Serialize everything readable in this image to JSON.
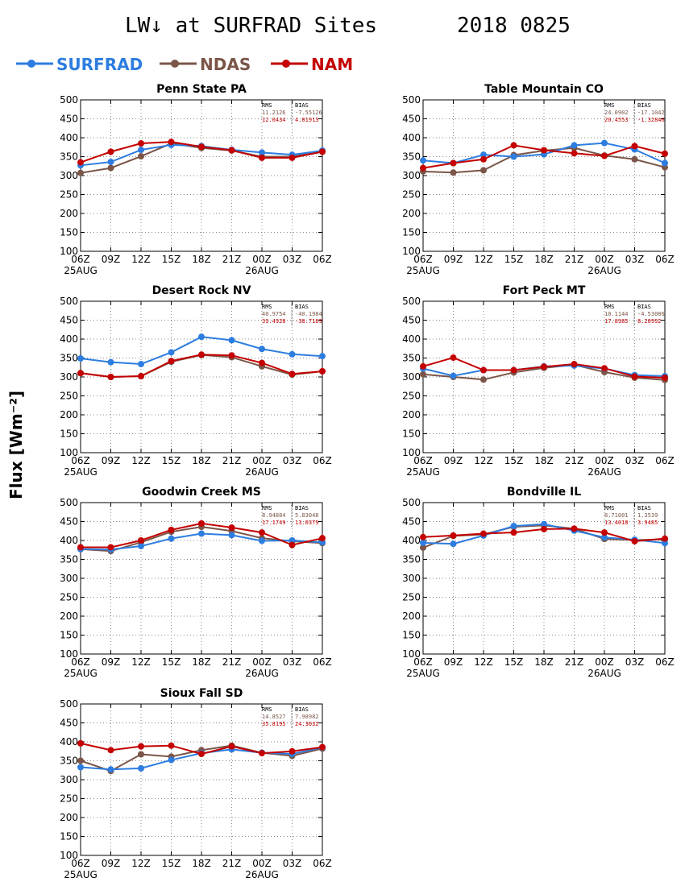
{
  "title_left": "LW↓ at SURFRAD Sites",
  "title_right": "2018 0825",
  "ylabel": "Flux [Wm⁻²]",
  "colors": {
    "SURFRAD": "#2d7de0",
    "NDAS": "#7a5548",
    "NAM": "#c40000"
  },
  "legend": [
    {
      "name": "SURFRAD",
      "color": "#2d7de0"
    },
    {
      "name": "NDAS",
      "color": "#7a5548"
    },
    {
      "name": "NAM",
      "color": "#c40000"
    }
  ],
  "chart_data": [
    {
      "type": "line",
      "title": "Penn State PA",
      "x": [
        "06Z",
        "09Z",
        "12Z",
        "15Z",
        "18Z",
        "21Z",
        "00Z",
        "03Z",
        "06Z"
      ],
      "date_labels": [
        "25AUG",
        "26AUG"
      ],
      "ylim": [
        100,
        500
      ],
      "yticks": [
        100,
        150,
        200,
        250,
        300,
        350,
        400,
        450,
        500
      ],
      "series": [
        {
          "name": "SURFRAD",
          "values": [
            327,
            336,
            368,
            381,
            378,
            368,
            361,
            355,
            366
          ]
        },
        {
          "name": "NDAS",
          "values": [
            307,
            320,
            351,
            385,
            373,
            366,
            350,
            350,
            365
          ]
        },
        {
          "name": "NAM",
          "values": [
            335,
            363,
            385,
            389,
            376,
            367,
            347,
            347,
            363
          ]
        }
      ],
      "stats": {
        "header": [
          "RMS",
          "BIAS"
        ],
        "NDAS": [
          "11.2126",
          "-7.55126"
        ],
        "NAM": [
          "12.0434",
          "4.81913"
        ]
      }
    },
    {
      "type": "line",
      "title": "Table Mountain CO",
      "x": [
        "06Z",
        "09Z",
        "12Z",
        "15Z",
        "18Z",
        "21Z",
        "00Z",
        "03Z",
        "06Z"
      ],
      "date_labels": [
        "25AUG",
        "26AUG"
      ],
      "ylim": [
        100,
        500
      ],
      "yticks": [
        100,
        150,
        200,
        250,
        300,
        350,
        400,
        450,
        500
      ],
      "series": [
        {
          "name": "SURFRAD",
          "values": [
            340,
            333,
            355,
            350,
            356,
            380,
            386,
            369,
            333
          ]
        },
        {
          "name": "NDAS",
          "values": [
            311,
            308,
            314,
            354,
            366,
            373,
            353,
            343,
            322
          ]
        },
        {
          "name": "NAM",
          "values": [
            320,
            333,
            343,
            380,
            367,
            359,
            352,
            378,
            358
          ]
        }
      ],
      "stats": {
        "header": [
          "RMS",
          "BIAS"
        ],
        "NDAS": [
          "24.0902",
          "-17.1042"
        ],
        "NAM": [
          "20.4553",
          "-1.32846"
        ]
      }
    },
    {
      "type": "line",
      "title": "Desert Rock NV",
      "x": [
        "06Z",
        "09Z",
        "12Z",
        "15Z",
        "18Z",
        "21Z",
        "00Z",
        "03Z",
        "06Z"
      ],
      "date_labels": [
        "25AUG",
        "26AUG"
      ],
      "ylim": [
        100,
        500
      ],
      "yticks": [
        100,
        150,
        200,
        250,
        300,
        350,
        400,
        450,
        500
      ],
      "series": [
        {
          "name": "SURFRAD",
          "values": [
            349,
            339,
            334,
            365,
            406,
            397,
            374,
            360,
            355
          ]
        },
        {
          "name": "NDAS",
          "values": [
            310,
            300,
            302,
            340,
            358,
            352,
            328,
            306,
            315
          ]
        },
        {
          "name": "NAM",
          "values": [
            310,
            300,
            302,
            342,
            359,
            357,
            337,
            308,
            315
          ]
        }
      ],
      "stats": {
        "header": [
          "RMS",
          "BIAS"
        ],
        "NDAS": [
          "40.9754",
          "-40.1984"
        ],
        "NAM": [
          "39.4928",
          "-38.7189"
        ]
      }
    },
    {
      "type": "line",
      "title": "Fort Peck MT",
      "x": [
        "06Z",
        "09Z",
        "12Z",
        "15Z",
        "18Z",
        "21Z",
        "00Z",
        "03Z",
        "06Z"
      ],
      "date_labels": [
        "25AUG",
        "26AUG"
      ],
      "ylim": [
        100,
        500
      ],
      "yticks": [
        100,
        150,
        200,
        250,
        300,
        350,
        400,
        450,
        500
      ],
      "series": [
        {
          "name": "SURFRAD",
          "values": [
            322,
            303,
            318,
            318,
            328,
            330,
            322,
            305,
            302
          ]
        },
        {
          "name": "NDAS",
          "values": [
            307,
            300,
            293,
            312,
            324,
            332,
            313,
            298,
            292
          ]
        },
        {
          "name": "NAM",
          "values": [
            328,
            351,
            318,
            318,
            327,
            334,
            323,
            301,
            298
          ]
        }
      ],
      "stats": {
        "header": [
          "RMS",
          "BIAS"
        ],
        "NDAS": [
          "10.1144",
          "-4.53086"
        ],
        "NAM": [
          "17.8985",
          "8.20992"
        ]
      }
    },
    {
      "type": "line",
      "title": "Goodwin Creek MS",
      "x": [
        "06Z",
        "09Z",
        "12Z",
        "15Z",
        "18Z",
        "21Z",
        "00Z",
        "03Z",
        "06Z"
      ],
      "date_labels": [
        "25AUG",
        "26AUG"
      ],
      "ylim": [
        100,
        500
      ],
      "yticks": [
        100,
        150,
        200,
        250,
        300,
        350,
        400,
        450,
        500
      ],
      "series": [
        {
          "name": "SURFRAD",
          "values": [
            377,
            376,
            385,
            405,
            418,
            414,
            399,
            400,
            395
          ]
        },
        {
          "name": "NDAS",
          "values": [
            377,
            372,
            395,
            423,
            436,
            425,
            406,
            398,
            393
          ]
        },
        {
          "name": "NAM",
          "values": [
            382,
            382,
            400,
            428,
            445,
            434,
            421,
            388,
            406
          ]
        }
      ],
      "stats": {
        "header": [
          "RMS",
          "BIAS"
        ],
        "NDAS": [
          "8.94884",
          "5.83048"
        ],
        "NAM": [
          "17.1749",
          "13.0379"
        ]
      }
    },
    {
      "type": "line",
      "title": "Bondville IL",
      "x": [
        "06Z",
        "09Z",
        "12Z",
        "15Z",
        "18Z",
        "21Z",
        "00Z",
        "03Z",
        "06Z"
      ],
      "date_labels": [
        "25AUG",
        "26AUG"
      ],
      "ylim": [
        100,
        500
      ],
      "yticks": [
        100,
        150,
        200,
        250,
        300,
        350,
        400,
        450,
        500
      ],
      "series": [
        {
          "name": "SURFRAD",
          "values": [
            394,
            391,
            413,
            438,
            443,
            426,
            408,
            402,
            393
          ]
        },
        {
          "name": "NDAS",
          "values": [
            381,
            412,
            416,
            436,
            440,
            431,
            404,
            401,
            403
          ]
        },
        {
          "name": "NAM",
          "values": [
            409,
            413,
            418,
            421,
            430,
            431,
            421,
            398,
            405
          ]
        }
      ],
      "stats": {
        "header": [
          "RMS",
          "BIAS"
        ],
        "NDAS": [
          "8.71001",
          "1.3539"
        ],
        "NAM": [
          "13.4018",
          "3.9485"
        ]
      }
    },
    {
      "type": "line",
      "title": "Sioux Fall SD",
      "x": [
        "06Z",
        "09Z",
        "12Z",
        "15Z",
        "18Z",
        "21Z",
        "00Z",
        "03Z",
        "06Z"
      ],
      "date_labels": [
        "25AUG",
        "26AUG"
      ],
      "ylim": [
        100,
        500
      ],
      "yticks": [
        100,
        150,
        200,
        250,
        300,
        350,
        400,
        450,
        500
      ],
      "series": [
        {
          "name": "SURFRAD",
          "values": [
            333,
            327,
            330,
            352,
            370,
            380,
            371,
            368,
            385
          ]
        },
        {
          "name": "NDAS",
          "values": [
            350,
            323,
            367,
            361,
            378,
            390,
            371,
            363,
            382
          ]
        },
        {
          "name": "NAM",
          "values": [
            396,
            378,
            388,
            390,
            368,
            388,
            370,
            375,
            386
          ]
        }
      ],
      "stats": {
        "header": [
          "RMS",
          "BIAS"
        ],
        "NDAS": [
          "14.8527",
          "7.98982"
        ],
        "NAM": [
          "35.8195",
          "24.3032"
        ]
      }
    }
  ]
}
